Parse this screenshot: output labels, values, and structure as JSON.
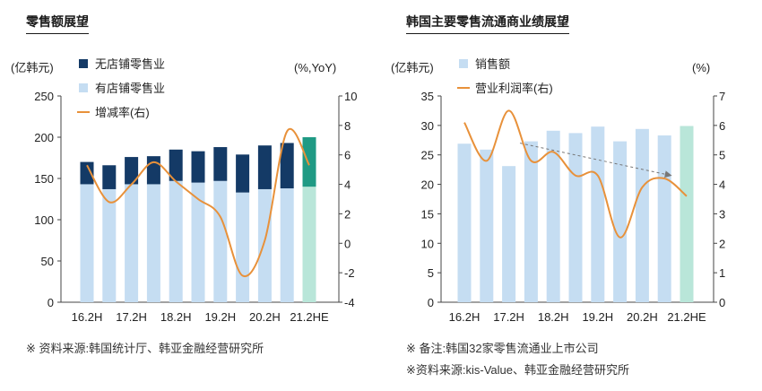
{
  "left_panel": {
    "title": "零售额展望",
    "source": "※ 资料来源:韩国统计厅、韩亚金融经营研究所"
  },
  "right_panel": {
    "title": "韩国主要零售流通商业绩展望",
    "note": "※ 备注:韩国32家零售流通业上市公司",
    "source": "※资料来源:kis-Value、韩亚金融经营研究所"
  },
  "colors": {
    "dark_bar": "#143a66",
    "light_bar": "#c5ddf2",
    "forecast_dark": "#1f9a84",
    "forecast_light": "#b9e6d9",
    "line": "#e8913a",
    "trend_arrow": "#777777"
  },
  "chart_data": [
    {
      "type": "bar",
      "stacked": true,
      "categories": [
        "16.2H",
        "",
        "17.2H",
        "",
        "18.2H",
        "",
        "19.2H",
        "",
        "20.2H",
        "",
        "21.2HE"
      ],
      "tick_labels": [
        "16.2H",
        "17.2H",
        "18.2H",
        "19.2H",
        "20.2H",
        "21.2HE"
      ],
      "y_left_label": "(亿韩元)",
      "y_right_label": "(%,YoY)",
      "ylim": [
        0,
        250
      ],
      "y_ticks": [
        0,
        50,
        100,
        150,
        200,
        250
      ],
      "y2lim": [
        -4,
        10
      ],
      "y2_ticks": [
        -4,
        -2,
        0,
        2,
        4,
        6,
        8,
        10
      ],
      "series": [
        {
          "name": "有店铺零售业",
          "role": "bottom",
          "values": [
            143,
            137,
            143,
            143,
            147,
            145,
            147,
            133,
            137,
            138,
            140
          ]
        },
        {
          "name": "无店铺零售业",
          "role": "top",
          "values": [
            27,
            29,
            33,
            34,
            38,
            38,
            41,
            46,
            53,
            55,
            60
          ]
        },
        {
          "name": "增减率(右)",
          "type": "line",
          "axis": "right",
          "values": [
            5.3,
            2.8,
            4.0,
            5.5,
            4.2,
            3.0,
            1.8,
            -2.2,
            0.2,
            7.6,
            5.3
          ]
        }
      ],
      "legend_position": "top-left",
      "forecast_index": 10
    },
    {
      "type": "bar",
      "categories": [
        "16.2H",
        "",
        "17.2H",
        "",
        "18.2H",
        "",
        "19.2H",
        "",
        "20.2H",
        "",
        "21.2HE"
      ],
      "tick_labels": [
        "16.2H",
        "17.2H",
        "18.2H",
        "19.2H",
        "20.2H",
        "21.2HE"
      ],
      "y_left_label": "(亿韩元)",
      "y_right_label": "(%)",
      "ylim": [
        0,
        35
      ],
      "y_ticks": [
        0,
        5,
        10,
        15,
        20,
        25,
        30,
        35
      ],
      "y2lim": [
        0,
        7
      ],
      "y2_ticks": [
        0,
        1,
        2,
        3,
        4,
        5,
        6,
        7
      ],
      "series": [
        {
          "name": "销售额",
          "values": [
            26.9,
            25.9,
            23.1,
            27.3,
            29.1,
            28.7,
            29.8,
            27.3,
            29.4,
            28.3,
            29.9
          ]
        },
        {
          "name": "营业利润率(右)",
          "type": "line",
          "axis": "right",
          "values": [
            6.1,
            4.8,
            6.5,
            4.8,
            5.1,
            4.3,
            4.3,
            2.2,
            3.9,
            4.2,
            3.6
          ]
        }
      ],
      "trend_arrow": {
        "from_index": 2.5,
        "from_value": 5.4,
        "to_index": 9.3,
        "to_value": 4.3
      },
      "legend_position": "top-left",
      "forecast_index": 10
    }
  ]
}
